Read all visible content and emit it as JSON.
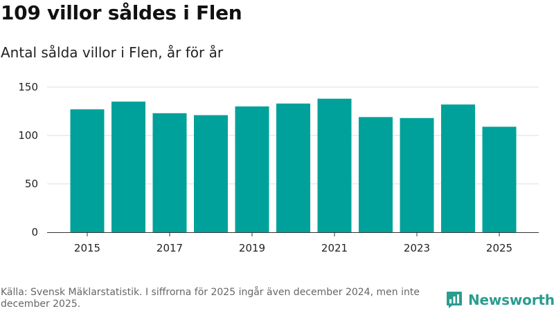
{
  "header": {
    "title": "109 villor såldes i Flen",
    "subtitle": "Antal sålda villor i Flen, år för år"
  },
  "footer": {
    "source": "Källa: Svensk Mäklarstatistik. I siffrorna för 2025 ingår även december 2024, men inte december 2025."
  },
  "brand": {
    "name": "Newsworthy",
    "icon": "bar-chart-speech-icon",
    "color": "#2a9d8f"
  },
  "chart_data": {
    "type": "bar",
    "title": "109 villor såldes i Flen",
    "subtitle": "Antal sålda villor i Flen, år för år",
    "xlabel": "",
    "ylabel": "",
    "categories": [
      "2015",
      "2016",
      "2017",
      "2018",
      "2019",
      "2020",
      "2021",
      "2022",
      "2023",
      "2024",
      "2025"
    ],
    "values": [
      127,
      135,
      123,
      121,
      130,
      133,
      138,
      119,
      118,
      132,
      109
    ],
    "x_tick_labels": [
      "2015",
      "2017",
      "2019",
      "2021",
      "2023",
      "2025"
    ],
    "y_ticks": [
      0,
      50,
      100,
      150
    ],
    "ylim": [
      0,
      150
    ],
    "grid": true,
    "legend": "none",
    "bar_color": "#00a19a",
    "grid_color": "#dddddd"
  }
}
